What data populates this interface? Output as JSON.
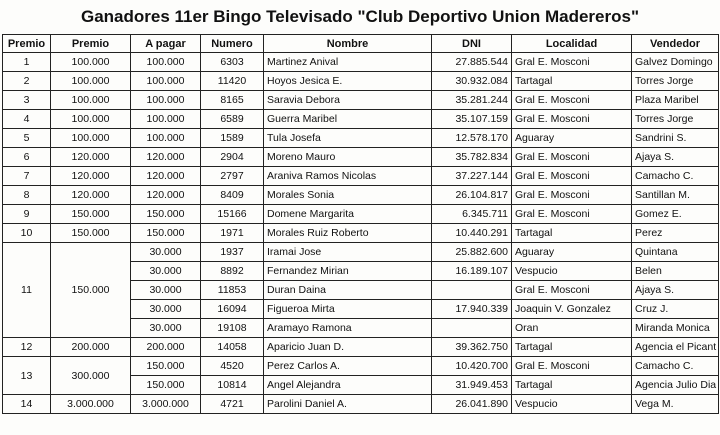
{
  "title": "Ganadores 11er Bingo Televisado \"Club Deportivo Union Madereros\"",
  "headers": [
    "Premio",
    "Premio",
    "A pagar",
    "Numero",
    "Nombre",
    "DNI",
    "Localidad",
    "Vendedor"
  ],
  "groups": [
    {
      "premio": "1",
      "monto": "100.000",
      "entries": [
        [
          "100.000",
          "6303",
          "Martinez Anival",
          "27.885.544",
          "Gral E. Mosconi",
          "Galvez Domingo"
        ]
      ]
    },
    {
      "premio": "2",
      "monto": "100.000",
      "entries": [
        [
          "100.000",
          "11420",
          "Hoyos Jesica E.",
          "30.932.084",
          "Tartagal",
          "Torres Jorge"
        ]
      ]
    },
    {
      "premio": "3",
      "monto": "100.000",
      "entries": [
        [
          "100.000",
          "8165",
          "Saravia Debora",
          "35.281.244",
          "Gral E. Mosconi",
          "Plaza Maribel"
        ]
      ]
    },
    {
      "premio": "4",
      "monto": "100.000",
      "entries": [
        [
          "100.000",
          "6589",
          "Guerra Maribel",
          "35.107.159",
          "Gral E. Mosconi",
          "Torres Jorge"
        ]
      ]
    },
    {
      "premio": "5",
      "monto": "100.000",
      "entries": [
        [
          "100.000",
          "1589",
          "Tula Josefa",
          "12.578.170",
          "Aguaray",
          "Sandrini S."
        ]
      ]
    },
    {
      "premio": "6",
      "monto": "120.000",
      "entries": [
        [
          "120.000",
          "2904",
          "Moreno Mauro",
          "35.782.834",
          "Gral E. Mosconi",
          "Ajaya S."
        ]
      ]
    },
    {
      "premio": "7",
      "monto": "120.000",
      "entries": [
        [
          "120.000",
          "2797",
          "Araniva Ramos Nicolas",
          "37.227.144",
          "Gral E. Mosconi",
          "Camacho C."
        ]
      ]
    },
    {
      "premio": "8",
      "monto": "120.000",
      "entries": [
        [
          "120.000",
          "8409",
          "Morales Sonia",
          "26.104.817",
          "Gral E. Mosconi",
          "Santillan M."
        ]
      ]
    },
    {
      "premio": "9",
      "monto": "150.000",
      "entries": [
        [
          "150.000",
          "15166",
          "Domene Margarita",
          "6.345.711",
          "Gral E. Mosconi",
          "Gomez E."
        ]
      ]
    },
    {
      "premio": "10",
      "monto": "150.000",
      "entries": [
        [
          "150.000",
          "1971",
          "Morales Ruiz Roberto",
          "10.440.291",
          "Tartagal",
          "Perez"
        ]
      ]
    },
    {
      "premio": "11",
      "monto": "150.000",
      "entries": [
        [
          "30.000",
          "1937",
          "Iramai Jose",
          "25.882.600",
          "Aguaray",
          "Quintana"
        ],
        [
          "30.000",
          "8892",
          "Fernandez Mirian",
          "16.189.107",
          "Vespucio",
          "Belen"
        ],
        [
          "30.000",
          "11853",
          "Duran Daina",
          null,
          "Gral E. Mosconi",
          "Ajaya S."
        ],
        [
          "30.000",
          "16094",
          "Figueroa Mirta",
          "17.940.339",
          "Joaquin V. Gonzalez",
          "Cruz J."
        ],
        [
          "30.000",
          "19108",
          "Aramayo Ramona",
          null,
          "Oran",
          "Miranda Monica"
        ]
      ]
    },
    {
      "premio": "12",
      "monto": "200.000",
      "entries": [
        [
          "200.000",
          "14058",
          "Aparicio Juan D.",
          "39.362.750",
          "Tartagal",
          "Agencia el Picant"
        ]
      ]
    },
    {
      "premio": "13",
      "monto": "300.000",
      "entries": [
        [
          "150.000",
          "4520",
          "Perez Carlos A.",
          "10.420.700",
          "Gral E. Mosconi",
          "Camacho C."
        ],
        [
          "150.000",
          "10814",
          "Angel Alejandra",
          "31.949.453",
          "Tartagal",
          "Agencia Julio Dia"
        ]
      ]
    },
    {
      "premio": "14",
      "monto": "3.000.000",
      "entries": [
        [
          "3.000.000",
          "4721",
          "Parolini Daniel A.",
          "26.041.890",
          "Vespucio",
          "Vega M."
        ]
      ]
    }
  ]
}
